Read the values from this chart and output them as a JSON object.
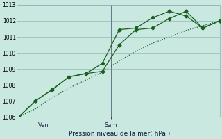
{
  "bg_color": "#c8e8e0",
  "grid_color": "#a0c8c0",
  "line_color": "#1a5e20",
  "title": "Pression niveau de la mer( hPa )",
  "ylim": [
    1006,
    1013
  ],
  "yticks": [
    1006,
    1007,
    1008,
    1009,
    1010,
    1011,
    1012,
    1013
  ],
  "xlim": [
    0,
    12
  ],
  "ven_x": 1.5,
  "sam_x": 5.5,
  "line1_x": [
    0,
    1,
    2,
    3,
    4,
    5,
    6,
    7,
    8,
    9,
    10,
    11,
    12
  ],
  "line1_y": [
    1006.0,
    1007.0,
    1007.7,
    1008.5,
    1008.7,
    1008.85,
    1010.5,
    1011.45,
    1011.55,
    1012.15,
    1012.6,
    1011.55,
    1012.0
  ],
  "line2_x": [
    0,
    1,
    2,
    3,
    4,
    5,
    6,
    7,
    8,
    9,
    10,
    11,
    12
  ],
  "line2_y": [
    1006.0,
    1006.5,
    1007.2,
    1007.8,
    1008.3,
    1008.8,
    1009.5,
    1010.1,
    1010.6,
    1011.0,
    1011.4,
    1011.7,
    1012.0
  ],
  "line3_x": [
    0,
    1,
    2,
    3,
    4,
    5,
    6,
    7,
    8,
    9,
    10,
    11,
    12
  ],
  "line3_y": [
    1006.0,
    1007.0,
    1007.7,
    1008.5,
    1008.7,
    1009.35,
    1011.45,
    1011.55,
    1012.2,
    1012.6,
    1012.3,
    1011.55,
    1012.0
  ]
}
